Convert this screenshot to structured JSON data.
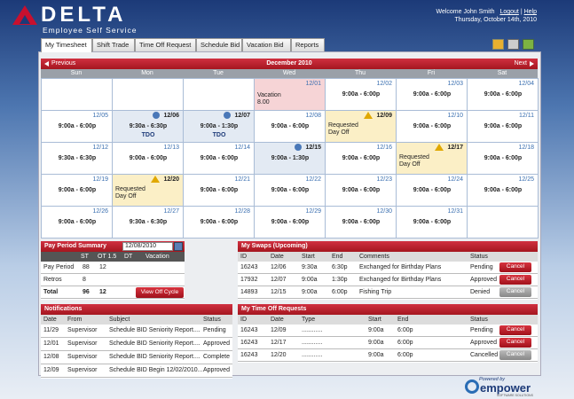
{
  "header": {
    "logo": "DELTA",
    "subtitle": "Employee Self Service",
    "welcome": "Welcome John Smith",
    "logout": "Logout",
    "help": "Help",
    "date": "Thursday, October 14th, 2010"
  },
  "tabs": [
    "My Timesheet",
    "Shift Trade",
    "Time Off Request",
    "Schedule Bid",
    "Vacation Bid",
    "Reports"
  ],
  "calendar": {
    "previous": "Previous",
    "month": "December 2010",
    "next": "Next",
    "days": [
      "Sun",
      "Mon",
      "Tue",
      "Wed",
      "Thu",
      "Fri",
      "Sat"
    ],
    "weeks": [
      [
        null,
        null,
        null,
        {
          "date": "12/01",
          "note": "Vacation",
          "hours": "8.00",
          "highlight": "pink"
        },
        {
          "date": "12/02",
          "time": "9:00a - 6:00p"
        },
        {
          "date": "12/03",
          "time": "9:00a - 6:00p"
        },
        {
          "date": "12/04",
          "time": "9:00a - 6:00p"
        }
      ],
      [
        {
          "date": "12/05",
          "time": "9:00a - 6:00p"
        },
        {
          "date": "12/06",
          "time": "9:30a - 6:30p",
          "tag": "TDO",
          "icon": "info",
          "highlight": "blue"
        },
        {
          "date": "12/07",
          "time": "9:00a - 1:30p",
          "tag": "TDO",
          "icon": "info",
          "highlight": "blue"
        },
        {
          "date": "12/08",
          "time": "9:00a - 6:00p"
        },
        {
          "date": "12/09",
          "note": "Requested Day Off",
          "icon": "warning",
          "highlight": "yellow"
        },
        {
          "date": "12/10",
          "time": "9:00a - 6:00p"
        },
        {
          "date": "12/11",
          "time": "9:00a - 6:00p"
        }
      ],
      [
        {
          "date": "12/12",
          "time": "9:30a - 6:30p"
        },
        {
          "date": "12/13",
          "time": "9:00a - 6:00p"
        },
        {
          "date": "12/14",
          "time": "9:00a - 6:00p"
        },
        {
          "date": "12/15",
          "time": "9:00a - 1:30p",
          "icon": "info",
          "highlight": "blue"
        },
        {
          "date": "12/16",
          "time": "9:00a - 6:00p"
        },
        {
          "date": "12/17",
          "note": "Requested Day Off",
          "icon": "warning",
          "highlight": "yellow"
        },
        {
          "date": "12/18",
          "time": "9:00a - 6:00p"
        }
      ],
      [
        {
          "date": "12/19",
          "time": "9:00a - 6:00p"
        },
        {
          "date": "12/20",
          "note": "Requested Day Off",
          "icon": "warning",
          "highlight": "yellow"
        },
        {
          "date": "12/21",
          "time": "9:00a - 6:00p"
        },
        {
          "date": "12/22",
          "time": "9:00a - 6:00p"
        },
        {
          "date": "12/23",
          "time": "9:00a - 6:00p"
        },
        {
          "date": "12/24",
          "time": "9:00a - 6:00p"
        },
        {
          "date": "12/25",
          "time": "9:00a - 6:00p"
        }
      ],
      [
        {
          "date": "12/26",
          "time": "9:00a - 6:00p"
        },
        {
          "date": "12/27",
          "time": "9:30a - 6:30p"
        },
        {
          "date": "12/28",
          "time": "9:00a - 6:00p"
        },
        {
          "date": "12/29",
          "time": "9:00a - 6:00p"
        },
        {
          "date": "12/30",
          "time": "9:00a - 6:00p"
        },
        {
          "date": "12/31",
          "time": "9:00a - 6:00p"
        },
        null
      ]
    ]
  },
  "pay_period": {
    "title": "Pay Period Summary",
    "date": "12/08/2010",
    "columns": [
      "ST",
      "OT 1.5",
      "DT",
      "Vacation"
    ],
    "rows": [
      {
        "label": "Pay Period",
        "values": [
          88,
          12,
          null,
          null
        ]
      },
      {
        "label": "Retros",
        "values": [
          8,
          null,
          null,
          null
        ]
      },
      {
        "label": "Total",
        "values": [
          96,
          12,
          null,
          null
        ]
      }
    ],
    "button": "View Off Cycle"
  },
  "swaps": {
    "title": "My Swaps (Upcoming)",
    "columns": [
      "ID",
      "Date",
      "Start",
      "End",
      "Comments",
      "Status"
    ],
    "rows": [
      [
        "16243",
        "12/06",
        "9:30a",
        "6:30p",
        "Exchanged for Birthday Plans",
        "Pending"
      ],
      [
        "17932",
        "12/07",
        "9:00a",
        "1:30p",
        "Exchanged for Birthday Plans",
        "Approved"
      ],
      [
        "14893",
        "12/15",
        "9:00a",
        "6:00p",
        "Fishing Trip",
        "Denied"
      ]
    ],
    "button": "Cancel",
    "enabled": [
      true,
      true,
      false
    ]
  },
  "notifications": {
    "title": "Notifications",
    "columns": [
      "Date",
      "From",
      "Subject",
      "Status"
    ],
    "rows": [
      [
        "11/29",
        "Supervisor",
        "Schedule BID Seniority Report....",
        "Pending"
      ],
      [
        "12/01",
        "Supervisor",
        "Schedule BID Seniority Report....",
        "Approved"
      ],
      [
        "12/08",
        "Supervisor",
        "Schedule BID Seniority Report....",
        "Complete"
      ],
      [
        "12/09",
        "Supervisor",
        "Schedule BID Begin 12/02/2010...",
        "Approved"
      ]
    ]
  },
  "time_off": {
    "title": "My Time Off Requests",
    "columns": [
      "ID",
      "Date",
      "Type",
      "Start",
      "End",
      "Status"
    ],
    "rows": [
      [
        "16243",
        "12/09",
        "............",
        "9:00a",
        "6:00p",
        "Pending"
      ],
      [
        "16243",
        "12/17",
        "............",
        "9:00a",
        "6:00p",
        "Approved"
      ],
      [
        "16243",
        "12/20",
        "............",
        "9:00a",
        "6:00p",
        "Cancelled"
      ]
    ],
    "button": "Cancel",
    "enabled": [
      true,
      true,
      false
    ]
  },
  "footer": {
    "powered": "Powered by",
    "brand": "empower",
    "tagline": "SOFTWARE SOLUTIONS"
  }
}
